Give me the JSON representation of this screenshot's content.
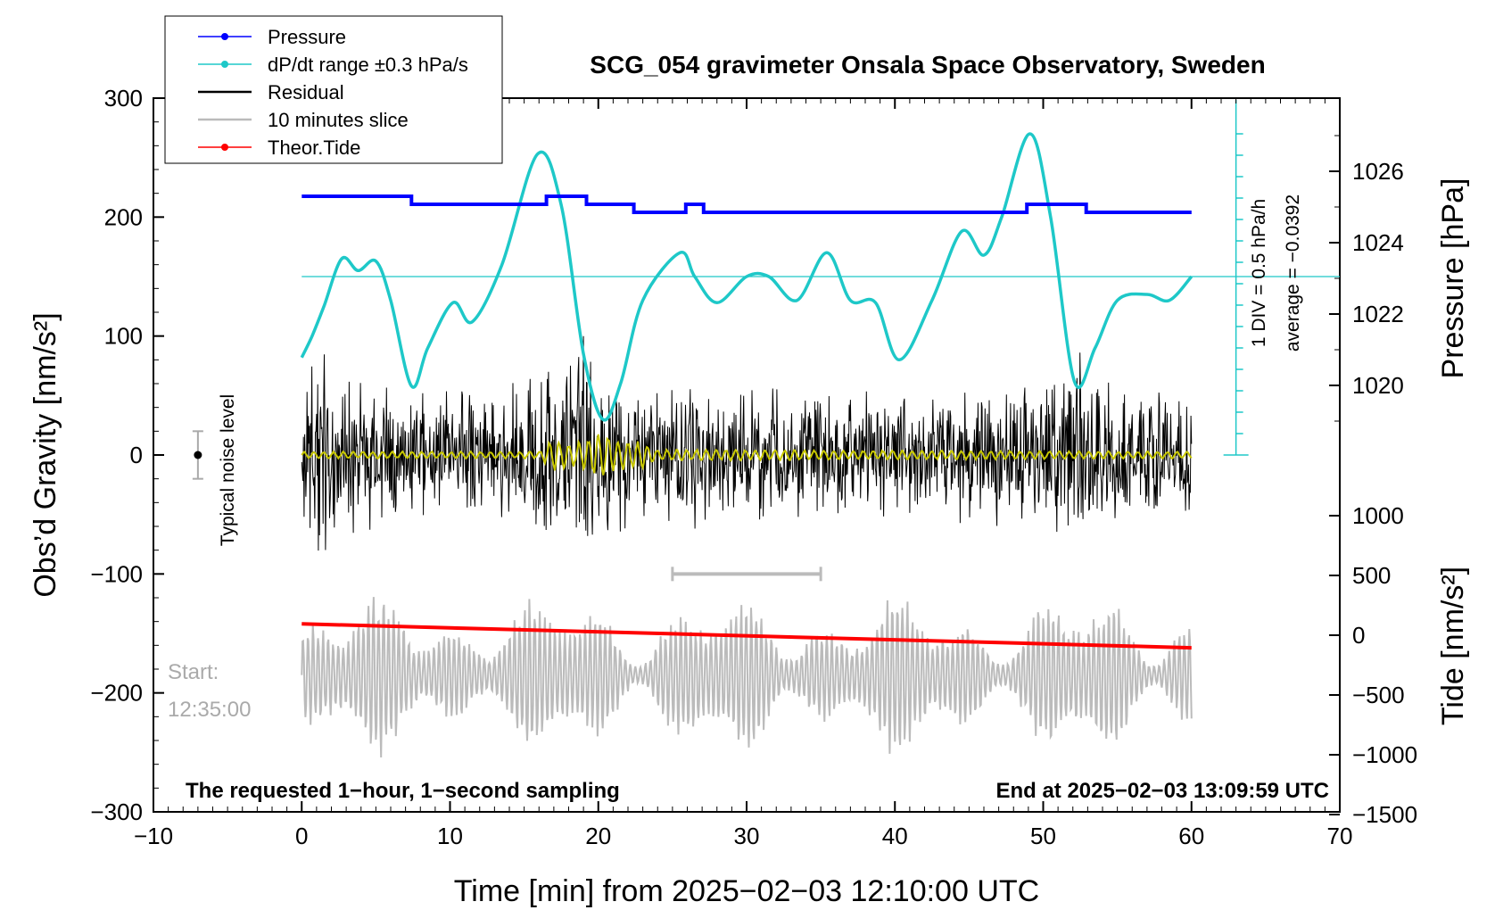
{
  "chart_data": {
    "type": "line",
    "title": "SCG_054 gravimeter Onsala Space Observatory, Sweden",
    "xlabel": "Time [min] from 2025−02−03 12:10:00 UTC",
    "ylabel_left": "Obs’d Gravity [nm/s²]",
    "ylabel_right_pressure": "Pressure [hPa]",
    "ylabel_right_tide": "Tide [nm/s²]",
    "xlim": [
      -10,
      70
    ],
    "ylim_left": [
      -300,
      300
    ],
    "ylim_pressure": [
      1018,
      1028
    ],
    "ylim_tide": [
      -1500,
      1000
    ],
    "x_ticks": [
      "−10",
      "0",
      "10",
      "20",
      "30",
      "40",
      "50",
      "60",
      "70"
    ],
    "y_ticks_left": [
      "−300",
      "−200",
      "−100",
      "0",
      "100",
      "200",
      "300"
    ],
    "pressure_ticks": [
      "1020",
      "1022",
      "1024",
      "1026"
    ],
    "tide_ticks": [
      "−1500",
      "−1000",
      "−500",
      "0",
      "500",
      "1000"
    ],
    "legend": [
      "Pressure",
      "dP/dt range ±0.3 hPa/s",
      "Residual",
      "10 minutes slice",
      "Theor.Tide"
    ],
    "noise_label": "Typical noise level",
    "start_label": "Start:",
    "start_time": "12:35:00",
    "bottom_left_note": "The requested 1−hour, 1−second sampling",
    "bottom_right_note": "End at 2025−02−03 13:09:59 UTC",
    "dpdt_scale_label": "1 DIV = 0.5 hPa/h",
    "dpdt_average_label": "average = −0.0392",
    "series": [
      {
        "name": "Pressure",
        "color": "#0000ff",
        "unit": "hPa",
        "steps": [
          [
            0,
            7.4,
            1025.2
          ],
          [
            7.4,
            16.5,
            1025.1
          ],
          [
            16.5,
            19.2,
            1025.2
          ],
          [
            19.2,
            22.4,
            1025.1
          ],
          [
            22.4,
            25.9,
            1025.0
          ],
          [
            25.9,
            27.1,
            1025.1
          ],
          [
            27.1,
            48.9,
            1025.0
          ],
          [
            48.9,
            52.9,
            1025.1
          ],
          [
            52.9,
            60,
            1025.0
          ]
        ]
      },
      {
        "name": "dP/dt range ±0.3 hPa/s",
        "color": "#1ec8c8",
        "unit": "left-axis nm/s²",
        "x": [
          0,
          0.7,
          1.5,
          2.7,
          3.8,
          5.0,
          6.0,
          7.4,
          8.5,
          10.2,
          11.5,
          13.5,
          15.9,
          17.5,
          19.0,
          20.3,
          21.5,
          23.0,
          25.5,
          26.5,
          28.0,
          30.0,
          31.5,
          33.4,
          35.4,
          37.0,
          38.7,
          40.3,
          42.5,
          44.5,
          46.0,
          47.2,
          49.1,
          50.5,
          52.1,
          53.5,
          55.0,
          57.0,
          58.5,
          60.0
        ],
        "y": [
          82,
          100,
          125,
          165,
          155,
          163,
          130,
          58,
          90,
          128,
          112,
          160,
          253,
          210,
          85,
          30,
          60,
          130,
          170,
          150,
          128,
          150,
          150,
          130,
          170,
          130,
          128,
          80,
          130,
          188,
          168,
          200,
          270,
          200,
          62,
          90,
          130,
          135,
          130,
          150
        ]
      },
      {
        "name": "Residual",
        "color": "#000000",
        "unit": "nm/s²",
        "envelope_x": [
          0,
          1,
          3,
          5,
          8,
          10,
          12,
          15,
          18,
          19,
          20,
          22,
          24,
          26,
          30,
          35,
          40,
          45,
          50,
          52.5,
          53,
          55,
          60
        ],
        "envelope_y": [
          95,
          110,
          70,
          70,
          55,
          55,
          60,
          65,
          90,
          110,
          95,
          65,
          70,
          65,
          60,
          60,
          60,
          60,
          65,
          110,
          75,
          60,
          55
        ]
      },
      {
        "name": "Yellow filtered",
        "color": "#c8c800",
        "unit": "nm/s²",
        "envelope_x": [
          0,
          16,
          17,
          18,
          19,
          20,
          21,
          22,
          23,
          24,
          60
        ],
        "envelope_y": [
          3,
          3,
          15,
          10,
          12,
          22,
          14,
          12,
          12,
          5,
          3
        ]
      },
      {
        "name": "10 minutes slice",
        "color": "#bbbbbb",
        "unit": "nm/s² (offset)",
        "x_range": [
          0,
          60
        ],
        "center_y": -185,
        "amplitude": 60
      },
      {
        "name": "Theor.Tide",
        "color": "#ff0000",
        "unit": "nm/s²",
        "x": [
          0,
          60
        ],
        "y": [
          95,
          -105
        ]
      }
    ],
    "slice_marker_range": [
      25,
      35
    ],
    "slice_marker_y": -100,
    "dpdt_reference_y": 150,
    "noise_level_x": -7,
    "noise_level_range": [
      -20,
      20
    ]
  }
}
